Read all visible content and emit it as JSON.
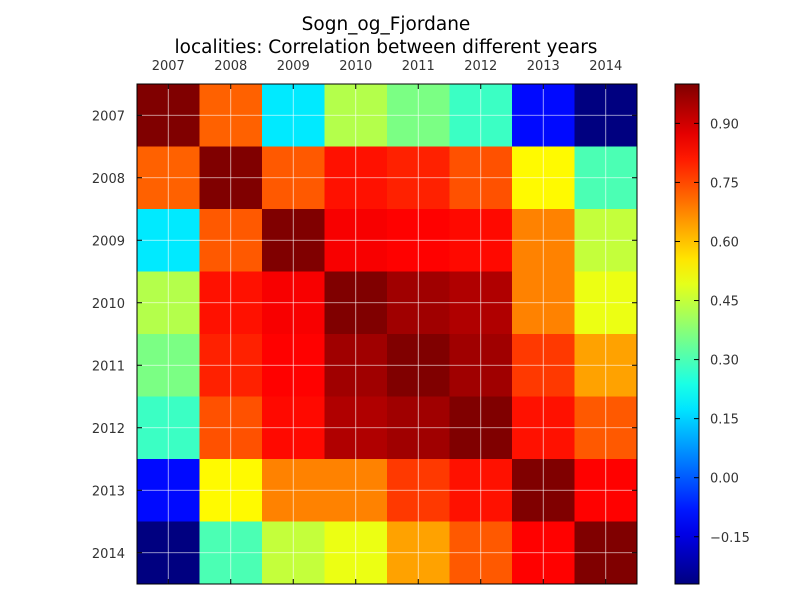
{
  "chart_data": {
    "type": "heatmap",
    "title": "Sogn_og_Fjordane",
    "subtitle": "localities: Correlation between different years",
    "categories": [
      "2007",
      "2008",
      "2009",
      "2010",
      "2011",
      "2012",
      "2013",
      "2014"
    ],
    "values": [
      [
        1.0,
        0.72,
        0.18,
        0.43,
        0.36,
        0.28,
        -0.1,
        -0.27
      ],
      [
        0.72,
        1.0,
        0.73,
        0.82,
        0.8,
        0.74,
        0.53,
        0.3
      ],
      [
        0.18,
        0.73,
        1.0,
        0.85,
        0.84,
        0.83,
        0.68,
        0.45
      ],
      [
        0.43,
        0.82,
        0.85,
        1.0,
        0.96,
        0.94,
        0.68,
        0.5
      ],
      [
        0.36,
        0.8,
        0.84,
        0.96,
        1.0,
        0.96,
        0.77,
        0.64
      ],
      [
        0.28,
        0.74,
        0.83,
        0.94,
        0.96,
        1.0,
        0.82,
        0.73
      ],
      [
        -0.1,
        0.53,
        0.68,
        0.68,
        0.77,
        0.82,
        1.0,
        0.84
      ],
      [
        -0.27,
        0.3,
        0.45,
        0.5,
        0.64,
        0.73,
        0.84,
        1.0
      ]
    ],
    "colorbar": {
      "min": -0.27,
      "max": 1.0,
      "ticks": [
        -0.15,
        0.0,
        0.15,
        0.3,
        0.45,
        0.6,
        0.75,
        0.9
      ],
      "tick_labels": [
        "−0.15",
        "0.00",
        "0.15",
        "0.30",
        "0.45",
        "0.60",
        "0.75",
        "0.90"
      ],
      "colormap": "jet"
    },
    "grid": true,
    "x_axis_position": "top"
  }
}
